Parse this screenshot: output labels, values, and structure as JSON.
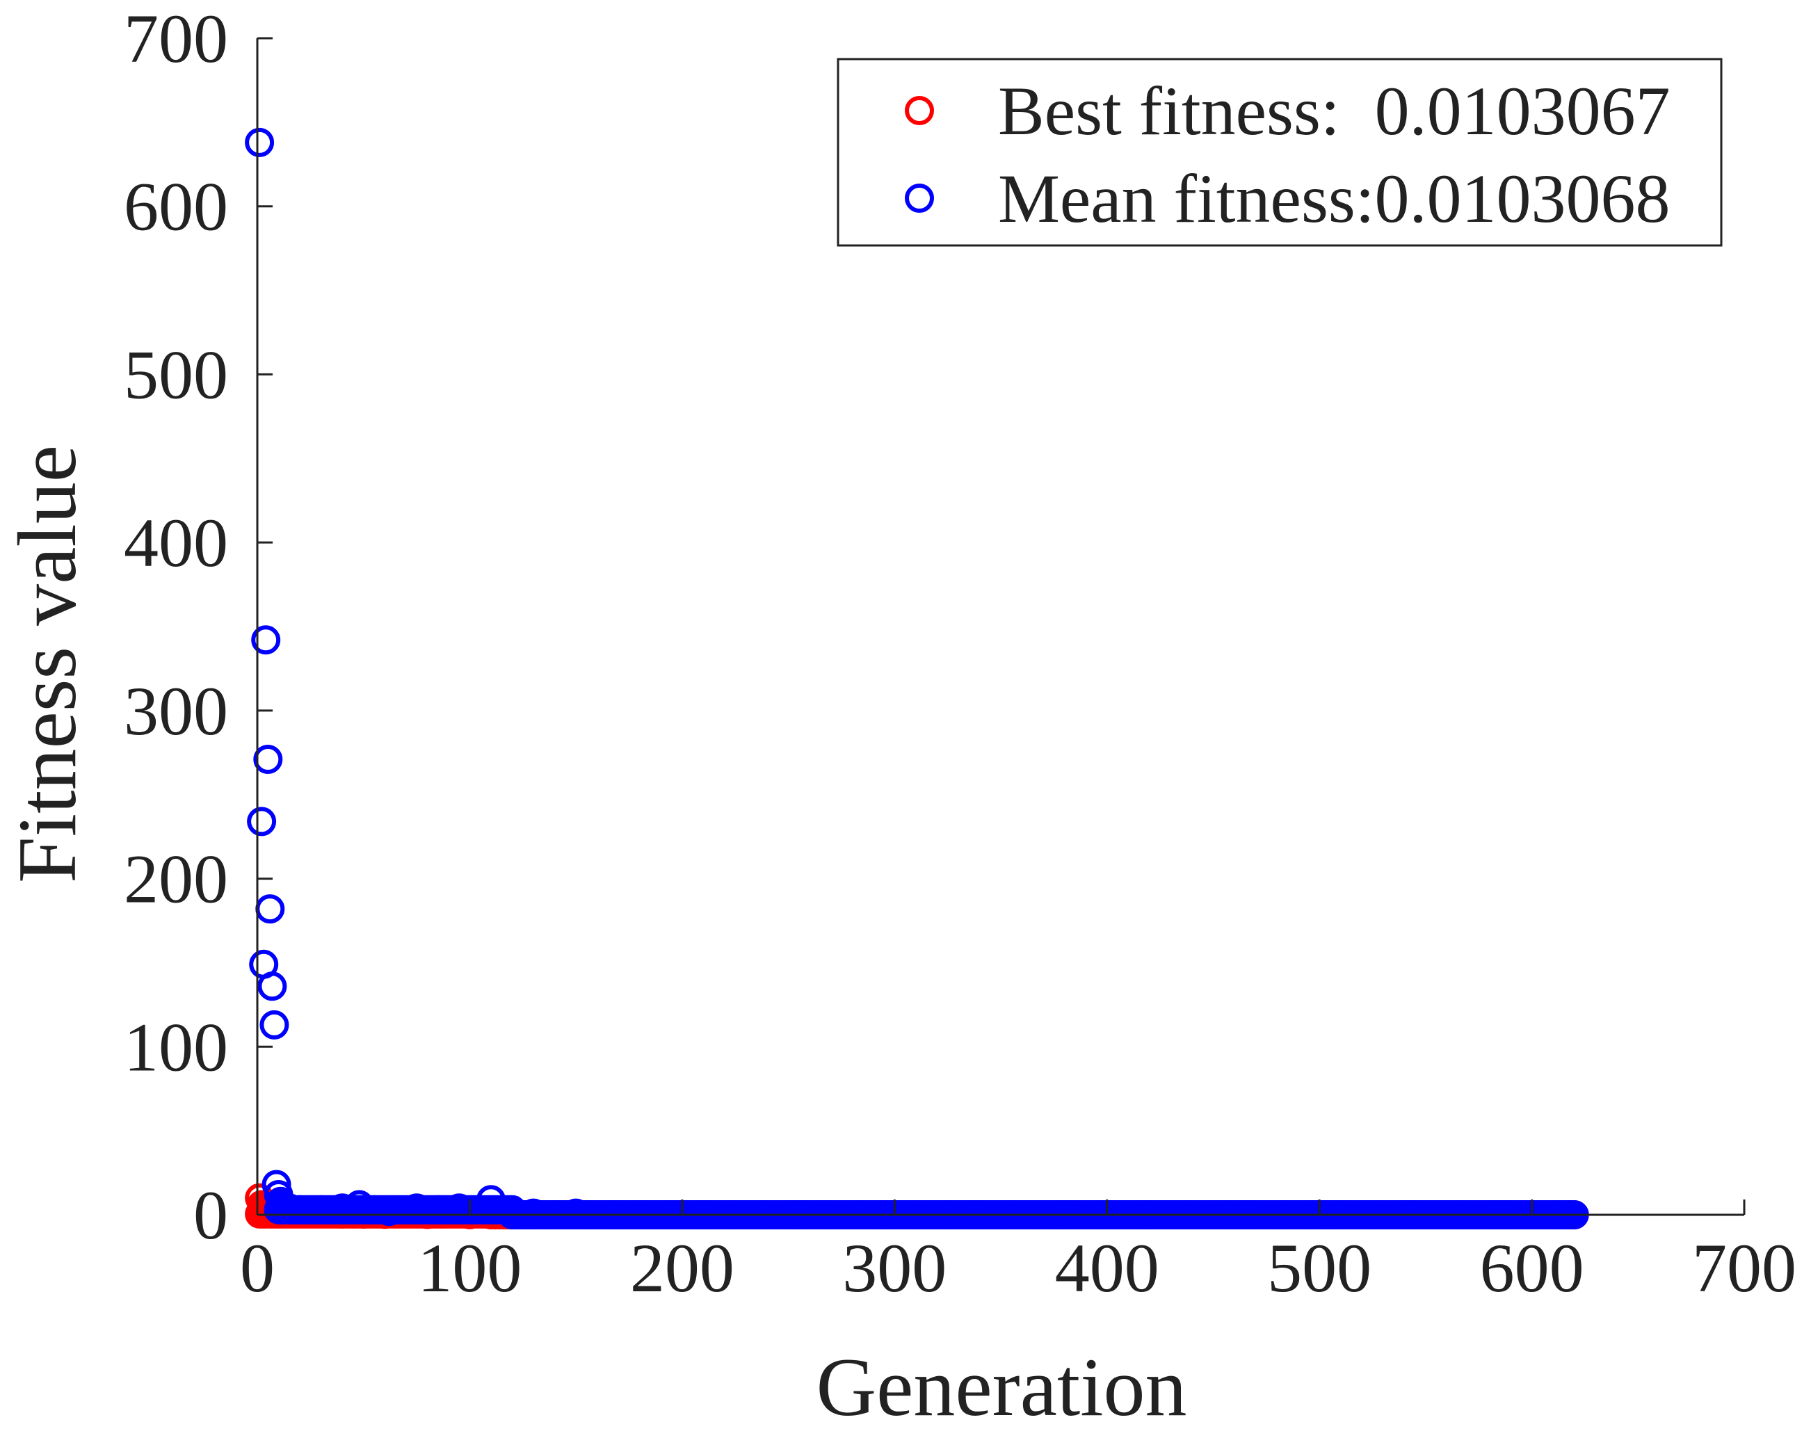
{
  "chart_data": {
    "type": "scatter",
    "title": "",
    "xlabel": "Generation",
    "ylabel": "Fitness value",
    "xlim": [
      0,
      700
    ],
    "ylim": [
      0,
      700
    ],
    "xticks": [
      0,
      100,
      200,
      300,
      400,
      500,
      600,
      700
    ],
    "yticks": [
      0,
      100,
      200,
      300,
      400,
      500,
      600,
      700
    ],
    "grid": false,
    "legend_position": "top-right",
    "series": [
      {
        "name": "Best fitness:  0.0103067",
        "color": "#ff0000",
        "marker": "open-circle",
        "points": [
          [
            1,
            10
          ],
          [
            2,
            6
          ],
          [
            3,
            4
          ],
          [
            4,
            3
          ],
          [
            5,
            2.5
          ],
          [
            6,
            2
          ],
          [
            8,
            1.5
          ],
          [
            10,
            1.2
          ],
          [
            15,
            1
          ],
          [
            20,
            0.8
          ],
          [
            30,
            0.6
          ],
          [
            40,
            0.5
          ],
          [
            50,
            0.4
          ],
          [
            60,
            0.3
          ],
          [
            80,
            0.2
          ],
          [
            100,
            0.1
          ],
          [
            120,
            0.05
          ]
        ],
        "dense_runs": [
          {
            "from": 1,
            "to": 110,
            "step": 1,
            "value": 0.5
          },
          {
            "from": 110,
            "to": 620,
            "step": 2,
            "value": 0.0103067
          }
        ]
      },
      {
        "name": "Mean fitness:0.0103068",
        "color": "#0000ff",
        "marker": "open-circle",
        "points": [
          [
            1,
            638
          ],
          [
            2,
            234
          ],
          [
            3,
            149
          ],
          [
            4,
            342
          ],
          [
            5,
            271
          ],
          [
            6,
            182
          ],
          [
            7,
            136
          ],
          [
            8,
            113
          ],
          [
            9,
            18
          ],
          [
            10,
            12
          ],
          [
            11,
            8
          ],
          [
            12,
            6
          ],
          [
            13,
            5
          ],
          [
            15,
            4
          ],
          [
            20,
            3
          ],
          [
            30,
            3
          ],
          [
            40,
            4
          ],
          [
            48,
            6
          ],
          [
            55,
            3
          ],
          [
            62,
            2
          ],
          [
            75,
            4
          ],
          [
            85,
            3
          ],
          [
            95,
            4
          ],
          [
            110,
            9
          ],
          [
            120,
            2
          ],
          [
            130,
            1
          ],
          [
            150,
            1
          ]
        ],
        "dense_runs": [
          {
            "from": 10,
            "to": 120,
            "step": 1,
            "value": 3
          },
          {
            "from": 120,
            "to": 620,
            "step": 1,
            "value": 0.0103068
          }
        ]
      }
    ]
  }
}
